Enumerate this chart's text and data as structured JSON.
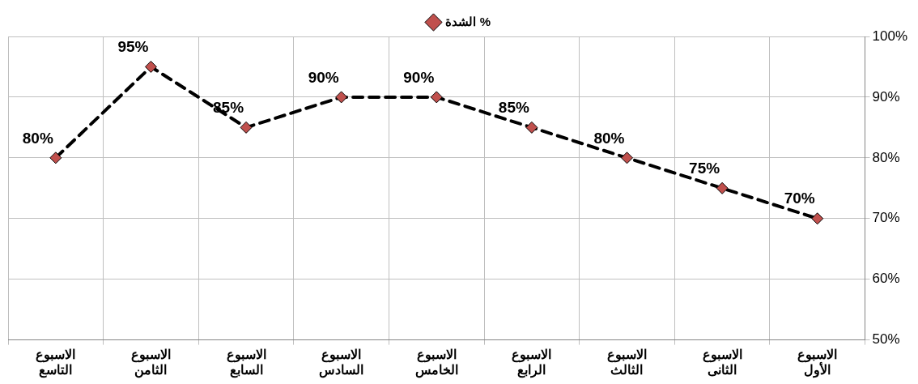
{
  "chart_data": {
    "type": "line",
    "categories": [
      "الاسبوع التاسع",
      "الاسبوع الثامن",
      "الاسبوع السابع",
      "الاسبوع السادس",
      "الاسبوع الخامس",
      "الاسبوع الرابع",
      "الاسبوع الثالث",
      "الاسبوع الثانى",
      "الاسبوع الأول"
    ],
    "series": [
      {
        "name": "الشدة %",
        "color": "#c0504d",
        "values": [
          80,
          95,
          85,
          90,
          90,
          85,
          80,
          75,
          70
        ],
        "value_labels": [
          "80%",
          "95%",
          "85%",
          "90%",
          "90%",
          "85%",
          "80%",
          "75%",
          "70%"
        ]
      }
    ],
    "ylim": [
      50,
      100
    ],
    "yticks": [
      {
        "value": 50,
        "label": "50%"
      },
      {
        "value": 60,
        "label": "60%"
      },
      {
        "value": 70,
        "label": "70%"
      },
      {
        "value": 80,
        "label": "80%"
      },
      {
        "value": 90,
        "label": "90%"
      },
      {
        "value": 100,
        "label": "100%"
      }
    ],
    "grid": true,
    "legend": "top",
    "marker": "diamond",
    "line_style": "dashed"
  }
}
